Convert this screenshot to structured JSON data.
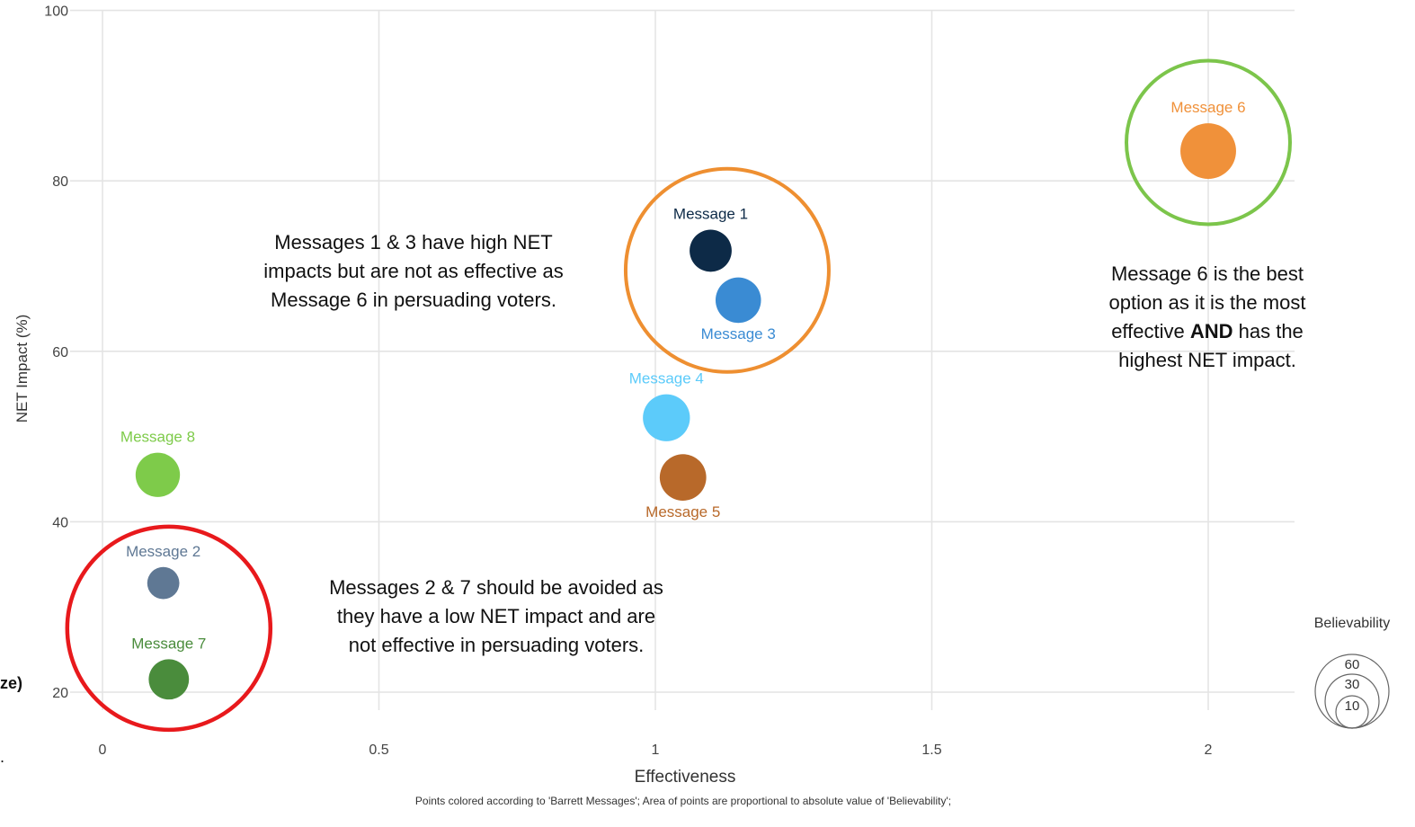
{
  "chart_data": {
    "type": "scatter",
    "xlabel": "Effectiveness",
    "ylabel": "NET Impact (%)",
    "xlim": [
      -0.1,
      2.2
    ],
    "ylim": [
      15,
      100
    ],
    "x_ticks": [
      0,
      0.5,
      1,
      1.5,
      2
    ],
    "x_tick_labels": [
      "0",
      "0.5",
      "1",
      "1.5",
      "2"
    ],
    "y_ticks": [
      20,
      40,
      60,
      80,
      100
    ],
    "y_tick_labels": [
      "20",
      "40",
      "60",
      "80",
      "100"
    ],
    "grid": true,
    "points": [
      {
        "label": "Message 1",
        "x": 1.1,
        "y": 71.8,
        "believability": 36,
        "color": "#0d2a47",
        "label_pos": "above"
      },
      {
        "label": "Message 2",
        "x": 0.11,
        "y": 32.8,
        "believability": 21,
        "color": "#5f7894",
        "label_pos": "above"
      },
      {
        "label": "Message 3",
        "x": 1.15,
        "y": 66.0,
        "believability": 42,
        "color": "#3a8bd3",
        "label_pos": "below"
      },
      {
        "label": "Message 4",
        "x": 1.02,
        "y": 52.2,
        "believability": 45,
        "color": "#5ccbfa",
        "label_pos": "above"
      },
      {
        "label": "Message 5",
        "x": 1.05,
        "y": 45.2,
        "believability": 44,
        "color": "#b8692a",
        "label_pos": "below"
      },
      {
        "label": "Message 6",
        "x": 2.0,
        "y": 83.5,
        "believability": 63,
        "color": "#f0913a",
        "label_pos": "above"
      },
      {
        "label": "Message 7",
        "x": 0.12,
        "y": 21.5,
        "believability": 33,
        "color": "#4a8c3c",
        "label_pos": "above"
      },
      {
        "label": "Message 8",
        "x": 0.1,
        "y": 45.5,
        "believability": 40,
        "color": "#7ecb4a",
        "label_pos": "above"
      }
    ],
    "highlight_circles": [
      {
        "x": 1.13,
        "y": 69.5,
        "color": "#ee8f31"
      },
      {
        "x": 2.0,
        "y": 84.5,
        "color": "#7cc54b"
      },
      {
        "x": 0.12,
        "y": 27.5,
        "color": "#e8191c"
      }
    ],
    "legend": {
      "title": "Believability",
      "values": [
        "60",
        "30",
        "10"
      ],
      "position": "bottom-right"
    }
  },
  "annotations": {
    "msg13": [
      "Messages 1 & 3 have high NET",
      "impacts but are not as effective as",
      "Message 6 in persuading voters."
    ],
    "msg6_line1": "Message 6 is the best",
    "msg6_line2": "option as it is the most",
    "msg6_line3a": "effective ",
    "msg6_bold": "AND",
    "msg6_line3b": " has the",
    "msg6_line4": "highest NET impact.",
    "msg27": [
      "Messages 2 & 7 should be avoided as",
      "they have a low NET impact and are",
      "not effective in persuading voters."
    ]
  },
  "caption": "Points colored according to 'Barrett Messages'; Area of points are proportional to absolute value of 'Believability';",
  "left_edge_text": "ze)",
  "left_edge_mark": "."
}
